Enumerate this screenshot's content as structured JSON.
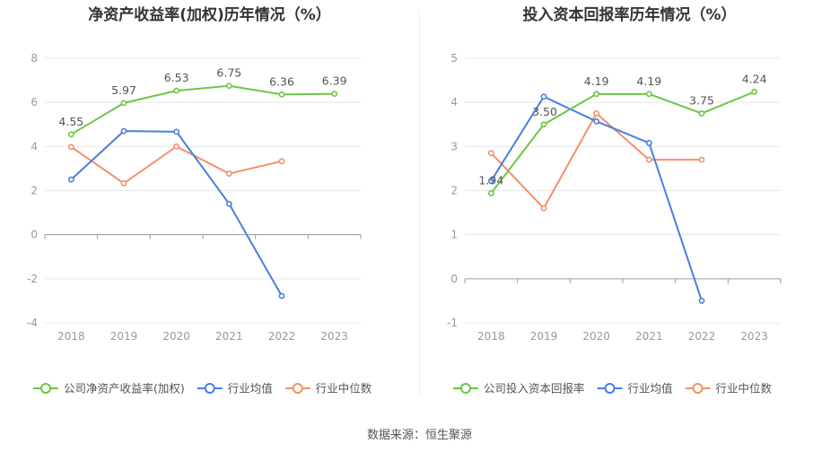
{
  "source": "数据来源：恒生聚源",
  "chart_data": [
    {
      "type": "line",
      "title": "净资产收益率(加权)历年情况（%）",
      "categories": [
        "2018",
        "2019",
        "2020",
        "2021",
        "2022",
        "2023"
      ],
      "ylim": [
        -4,
        8
      ],
      "yticks": [
        -4,
        -2,
        0,
        2,
        4,
        6,
        8
      ],
      "grid": true,
      "legend_position": "bottom",
      "series": [
        {
          "name": "公司净资产收益率(加权)",
          "color": "#6cc644",
          "values": [
            4.55,
            5.97,
            6.53,
            6.75,
            6.36,
            6.39
          ],
          "labels": [
            "4.55",
            "5.97",
            "6.53",
            "6.75",
            "6.36",
            "6.39"
          ]
        },
        {
          "name": "行业均值",
          "color": "#4a7ee0",
          "values": [
            2.5,
            4.7,
            4.67,
            1.4,
            -2.78,
            null
          ]
        },
        {
          "name": "行业中位数",
          "color": "#f4906a",
          "values": [
            3.98,
            2.33,
            4.0,
            2.77,
            3.33,
            null
          ]
        }
      ]
    },
    {
      "type": "line",
      "title": "投入资本回报率历年情况（%）",
      "categories": [
        "2018",
        "2019",
        "2020",
        "2021",
        "2022",
        "2023"
      ],
      "ylim": [
        -1,
        5
      ],
      "yticks": [
        -1,
        0,
        1,
        2,
        3,
        4,
        5
      ],
      "grid": true,
      "legend_position": "bottom",
      "series": [
        {
          "name": "公司投入资本回报率",
          "color": "#6cc644",
          "values": [
            1.94,
            3.5,
            4.19,
            4.19,
            3.75,
            4.24
          ],
          "labels": [
            "1.94",
            "3.50",
            "4.19",
            "4.19",
            "3.75",
            "4.24"
          ]
        },
        {
          "name": "行业均值",
          "color": "#4a7ee0",
          "values": [
            2.22,
            4.13,
            3.57,
            3.08,
            -0.5,
            null
          ]
        },
        {
          "name": "行业中位数",
          "color": "#f4906a",
          "values": [
            2.85,
            1.6,
            3.75,
            2.7,
            2.7,
            null
          ]
        }
      ]
    }
  ]
}
